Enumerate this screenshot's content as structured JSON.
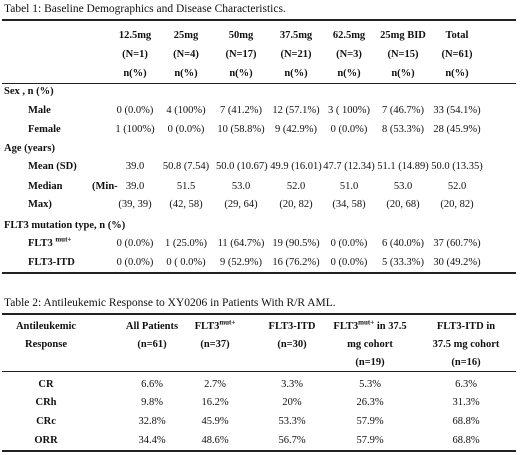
{
  "table1": {
    "caption": "Tabel 1: Baseline Demographics and Disease Characteristics.",
    "columns": [
      {
        "dose": "12.5mg",
        "n": "(N=1)",
        "unit": "n(%)"
      },
      {
        "dose": "25mg",
        "n": "(N=4)",
        "unit": "n(%)"
      },
      {
        "dose": "50mg",
        "n": "(N=17)",
        "unit": "n(%)"
      },
      {
        "dose": "37.5mg",
        "n": "(N=21)",
        "unit": "n(%)"
      },
      {
        "dose": "62.5mg",
        "n": "(N=3)",
        "unit": "n(%)"
      },
      {
        "dose": "25mg BID",
        "n": "(N=15)",
        "unit": "n(%)"
      },
      {
        "dose": "Total",
        "n": "(N=61)",
        "unit": "n(%)"
      }
    ],
    "sections": {
      "sex": "Sex , n (%)",
      "age": "Age (years)",
      "flt3": "FLT3 mutation type, n (%)"
    },
    "rows": {
      "male": {
        "label": "Male",
        "cells": [
          "0 (0.0%)",
          "4 (100%)",
          "7 (41.2%)",
          "12 (57.1%)",
          "3 ( 100%)",
          "7 (46.7%)",
          "33 (54.1%)"
        ]
      },
      "female": {
        "label": "Female",
        "cells": [
          "1 (100%)",
          "0 (0.0%)",
          "10 (58.8%)",
          "9 (42.9%)",
          "0 (0.0%)",
          "8 (53.3%)",
          "28 (45.9%)"
        ]
      },
      "mean": {
        "label": "Mean (SD)",
        "cells": [
          "39.0",
          "50.8 (7.54)",
          "50.0 (10.67)",
          "49.9 (16.01)",
          "47.7 (12.34)",
          "51.1 (14.89)",
          "50.0 (13.35)"
        ]
      },
      "median": {
        "label_a": "Median",
        "label_b": "(Min-",
        "cells": [
          "39.0",
          "51.5",
          "53.0",
          "52.0",
          "51.0",
          "53.0",
          "52.0"
        ]
      },
      "max": {
        "label": "Max)",
        "cells": [
          "(39, 39)",
          "(42, 58)",
          "(29, 64)",
          "(20, 82)",
          "(34, 58)",
          "(20, 68)",
          "(20, 82)"
        ]
      },
      "flt3mut": {
        "label": "FLT3",
        "sup": "mut+",
        "cells": [
          "0 (0.0%)",
          "1 (25.0%)",
          "11 (64.7%)",
          "19 (90.5%)",
          "0 (0.0%)",
          "6 (40.0%)",
          "37 (60.7%)"
        ]
      },
      "flt3itd": {
        "label": "FLT3-ITD",
        "cells": [
          "0 (0.0%)",
          "0 ( 0.0%)",
          "9 (52.9%)",
          "16 (76.2%)",
          "0 (0.0%)",
          "5 (33.3%)",
          "30 (49.2%)"
        ]
      }
    }
  },
  "table2": {
    "caption": "Table 2: Antileukemic Response to XY0206 in Patients With R/R AML.",
    "headers": [
      {
        "l1": "Antileukemic",
        "l2": "Response"
      },
      {
        "l1": "All Patients",
        "l2": "(n=61)"
      },
      {
        "l1": "FLT3",
        "sup": "mut+",
        "l2": "(n=37)"
      },
      {
        "l1": "FLT3-ITD",
        "l2": "(n=30)"
      },
      {
        "l1": "FLT3",
        "sup": "mut+",
        "l1b": " in 37.5",
        "l2": "mg cohort",
        "l3": "(n=19)"
      },
      {
        "l1": "FLT3-ITD in",
        "l2": "37.5 mg cohort",
        "l3": "(n=16)"
      }
    ],
    "rows": [
      {
        "label": "CR",
        "cells": [
          "6.6%",
          "2.7%",
          "3.3%",
          "5.3%",
          "6.3%"
        ]
      },
      {
        "label": "CRh",
        "cells": [
          "9.8%",
          "16.2%",
          "20%",
          "26.3%",
          "31.3%"
        ]
      },
      {
        "label": "CRc",
        "cells": [
          "32.8%",
          "45.9%",
          "53.3%",
          "57.9%",
          "68.8%"
        ]
      },
      {
        "label": "ORR",
        "cells": [
          "34.4%",
          "48.6%",
          "56.7%",
          "57.9%",
          "68.8%"
        ]
      }
    ]
  }
}
